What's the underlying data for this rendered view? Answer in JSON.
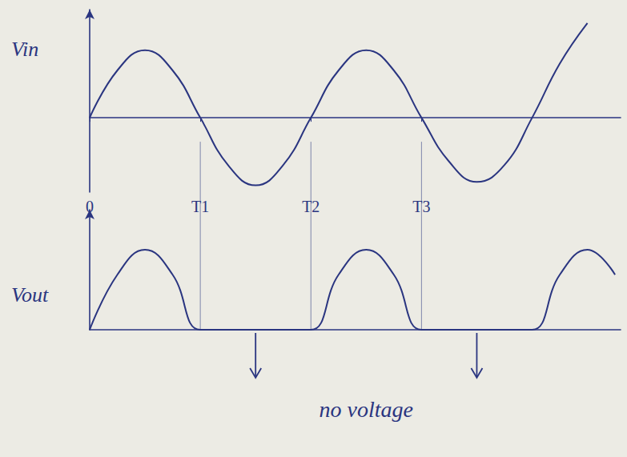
{
  "chart_data": [
    {
      "type": "line",
      "ylabel": "Vin",
      "color": "#2a3580",
      "x": [
        0,
        0.25,
        0.5,
        0.75,
        1,
        1.25,
        1.5,
        1.75,
        2,
        2.25,
        2.5,
        2.75,
        3,
        3.25,
        3.5,
        3.75,
        4,
        4.25,
        4.5
      ],
      "values": [
        0,
        0.7,
        1,
        0.7,
        0,
        -0.7,
        -1,
        -0.7,
        0,
        0.7,
        1,
        0.7,
        0,
        -0.65,
        -0.95,
        -0.7,
        0,
        0.8,
        1.4
      ],
      "xlim": [
        0,
        4.8
      ],
      "ylim": [
        -1.1,
        1.6
      ],
      "xticks": [
        0,
        {
          "value": 1,
          "label": "T1"
        },
        {
          "value": 2,
          "label": "T2"
        },
        {
          "value": 3,
          "label": "T3"
        }
      ],
      "tick_labels": "x"
    },
    {
      "type": "line",
      "ylabel": "Vout",
      "color": "#2a3580",
      "x": [
        0,
        0.25,
        0.5,
        0.75,
        1,
        1.25,
        1.5,
        1.75,
        2,
        2.25,
        2.5,
        2.75,
        3,
        3.25,
        3.5,
        3.75,
        4,
        4.25,
        4.5,
        4.75
      ],
      "values": [
        0,
        0.55,
        0.8,
        0.55,
        0,
        0,
        0,
        0,
        0,
        0.55,
        0.8,
        0.55,
        0,
        0,
        0,
        0,
        0,
        0.55,
        0.8,
        0.55
      ],
      "xlim": [
        0,
        4.8
      ],
      "ylim": [
        0,
        1.2
      ],
      "tick_labels": false,
      "annotation": "no voltage"
    }
  ]
}
